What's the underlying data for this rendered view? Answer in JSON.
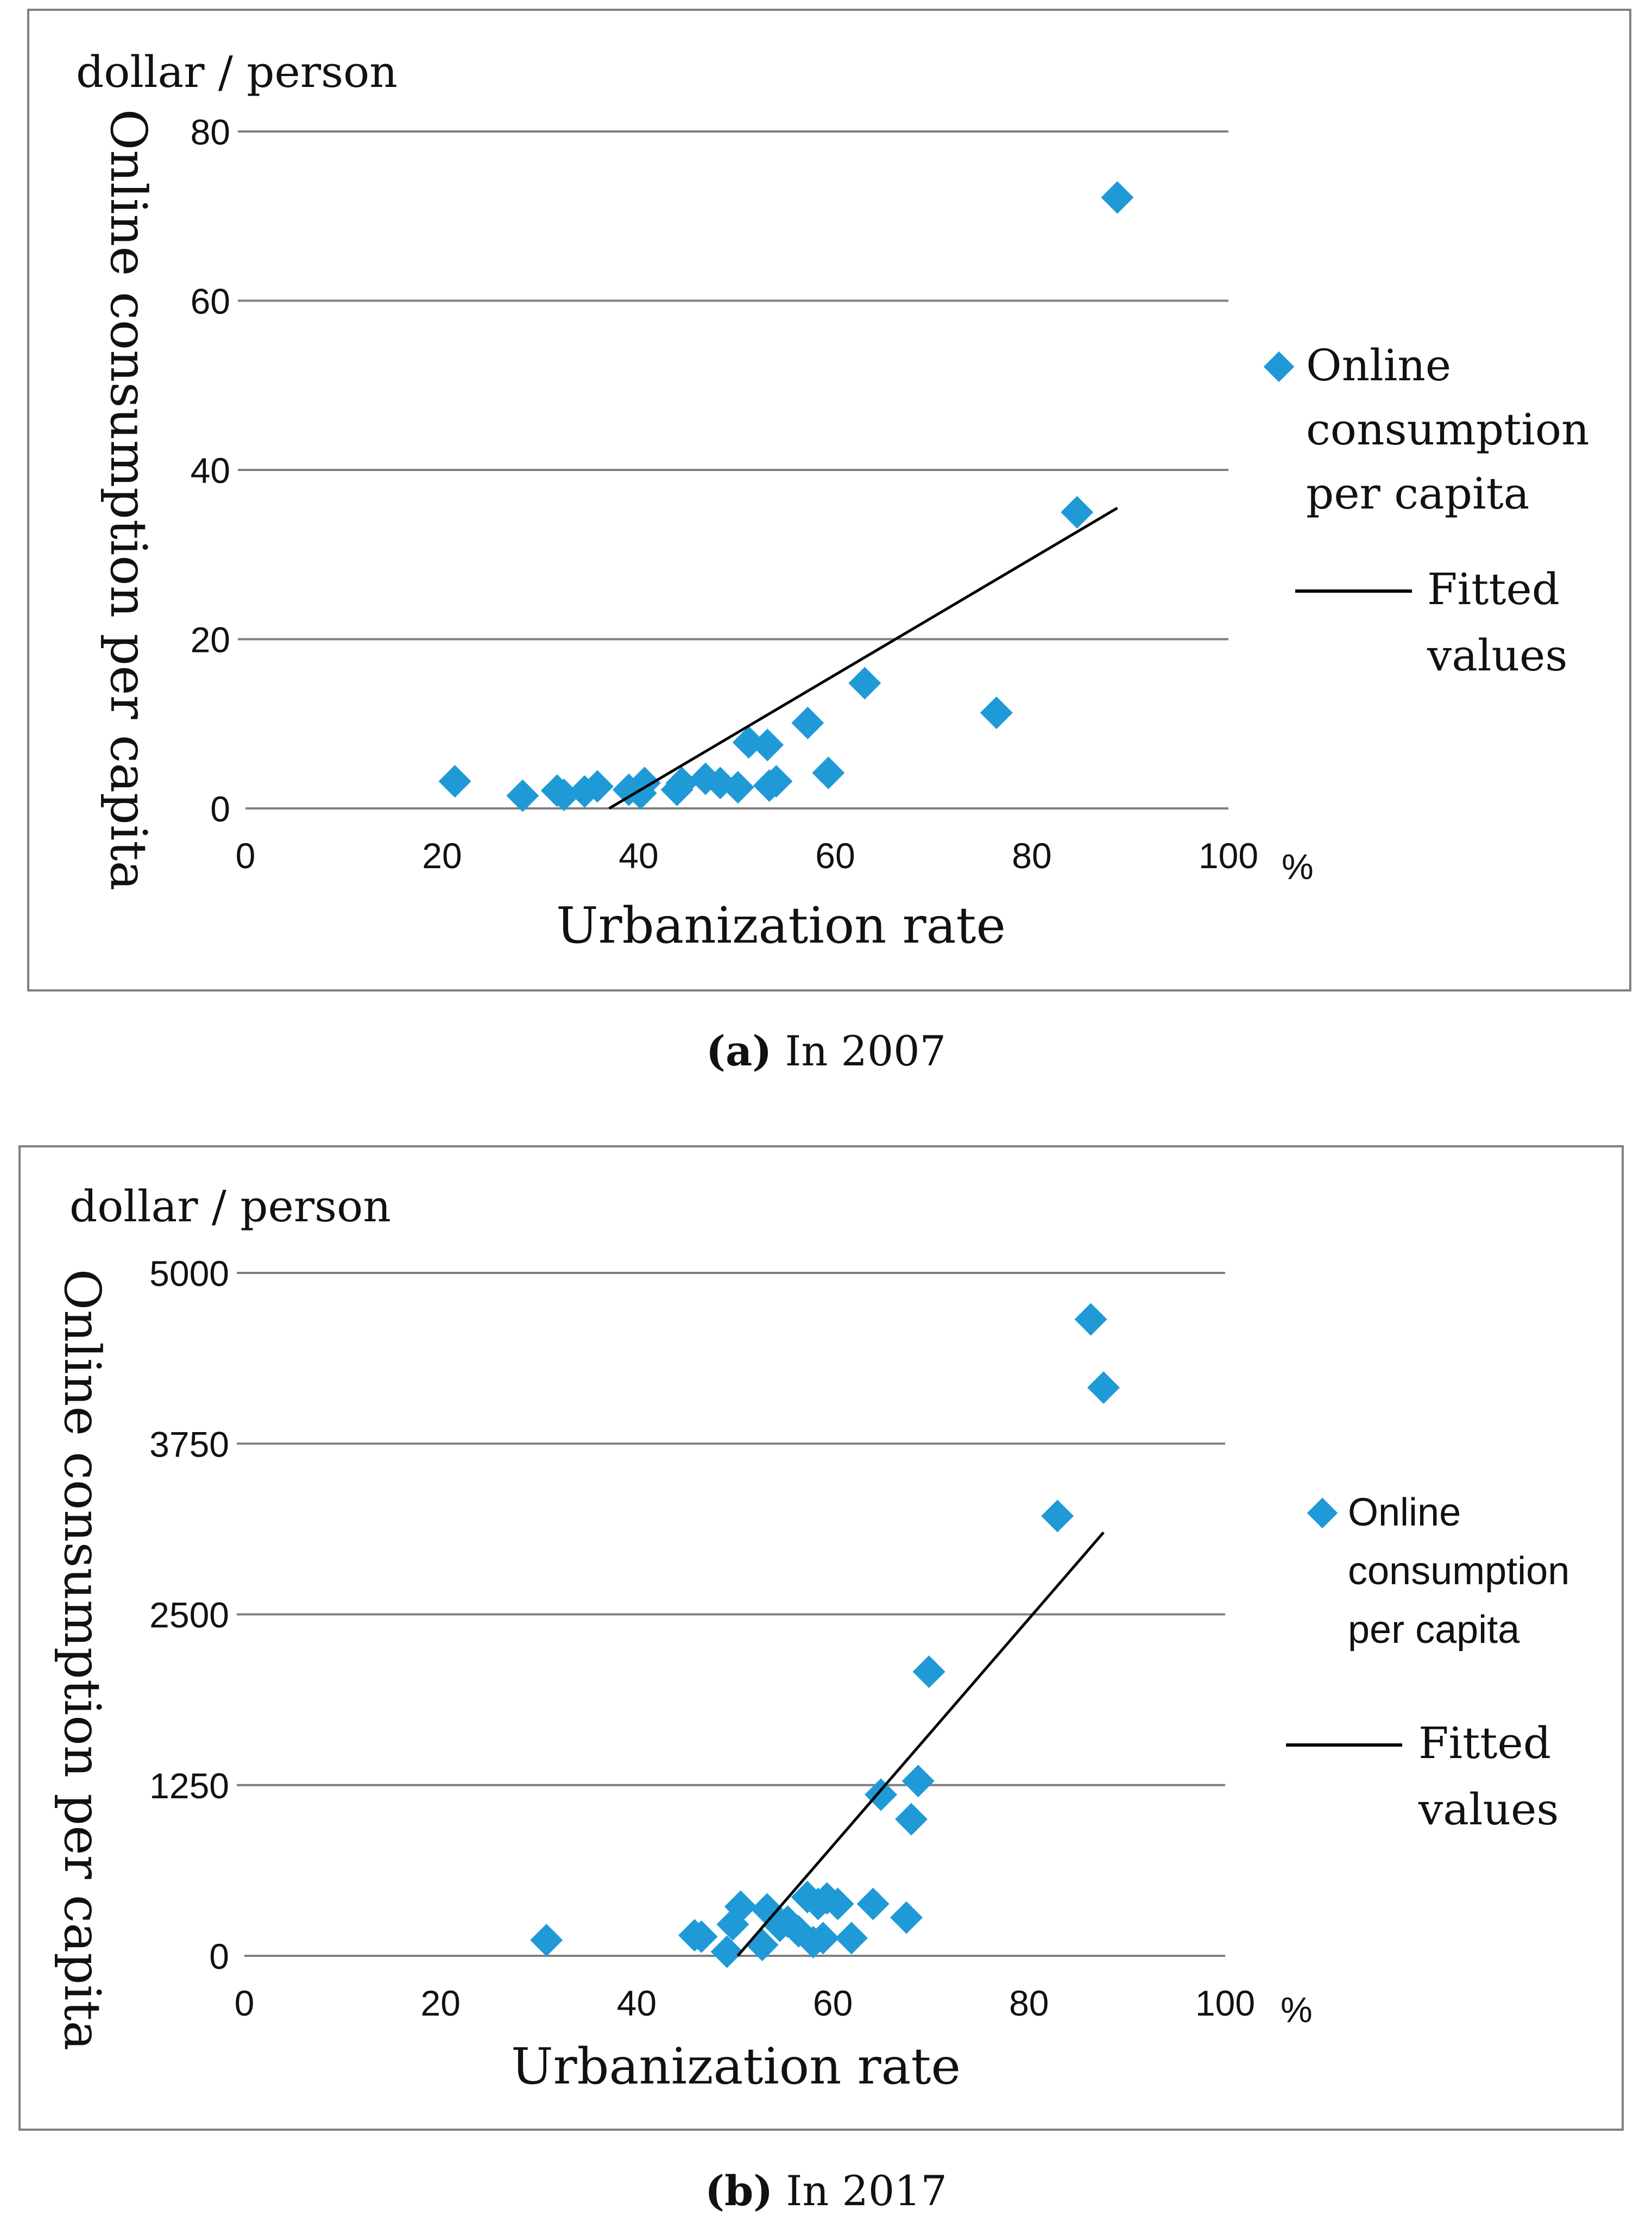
{
  "figures": [
    {
      "id": "a",
      "caption_label": "(a)",
      "caption_text": "In 2007"
    },
    {
      "id": "b",
      "caption_label": "(b)",
      "caption_text": "In 2017"
    }
  ],
  "colors": {
    "marker": "#1f9ad6",
    "fit_line": "#000000",
    "grid": "#7f7f7f",
    "frame": "#808080"
  },
  "chart_data": [
    {
      "type": "scatter",
      "title": "",
      "unit_label": "dollar / person",
      "xlabel": "Urbanization rate",
      "ylabel": "Online consumption per capita",
      "x_unit": "%",
      "xlim": [
        0,
        100
      ],
      "ylim": [
        0,
        80
      ],
      "xticks": [
        "0",
        "20",
        "40",
        "60",
        "80",
        "100"
      ],
      "yticks": [
        "0",
        "20",
        "40",
        "60",
        "80"
      ],
      "ytick_values": [
        0,
        20,
        40,
        60,
        80
      ],
      "grid": true,
      "legend_position": "right",
      "series": [
        {
          "name": "Online consumption per capita",
          "kind": "scatter",
          "x": [
            21.3,
            28.2,
            31.7,
            32.4,
            34.5,
            35.8,
            39.0,
            40.2,
            40.6,
            43.9,
            44.4,
            46.8,
            48.3,
            50.1,
            51.2,
            53.1,
            53.3,
            54.0,
            57.2,
            59.3,
            63.0,
            76.4,
            84.6,
            88.7
          ],
          "y": [
            3.2,
            1.5,
            2.1,
            1.6,
            2.0,
            2.6,
            2.2,
            1.8,
            3.0,
            2.2,
            3.0,
            3.5,
            3.0,
            2.5,
            7.8,
            7.5,
            2.7,
            3.2,
            10.1,
            4.2,
            14.8,
            11.3,
            35.0,
            72.2
          ]
        },
        {
          "name": "Fitted values",
          "kind": "line",
          "x": [
            37.0,
            88.7
          ],
          "y": [
            0.0,
            35.5
          ]
        }
      ]
    },
    {
      "type": "scatter",
      "title": "",
      "unit_label": "dollar / person",
      "xlabel": "Urbanization rate",
      "ylabel": "Online consumption per capita",
      "x_unit": "%",
      "xlim": [
        0,
        100
      ],
      "ylim": [
        0,
        5000
      ],
      "xticks": [
        "0",
        "20",
        "40",
        "60",
        "80",
        "100"
      ],
      "yticks": [
        "0",
        "1250",
        "2500",
        "3750",
        "5000"
      ],
      "ytick_values": [
        0,
        1250,
        2500,
        3750,
        5000
      ],
      "grid": true,
      "legend_position": "right",
      "series": [
        {
          "name": "Online consumption per capita",
          "kind": "scatter",
          "x": [
            30.8,
            45.9,
            46.6,
            49.2,
            49.8,
            50.6,
            52.8,
            53.3,
            54.6,
            55.4,
            56.5,
            57.4,
            58.0,
            58.5,
            59.0,
            59.4,
            60.5,
            61.9,
            64.1,
            64.9,
            67.5,
            68.0,
            68.7,
            69.8,
            82.9,
            86.3,
            87.6
          ],
          "y": [
            115,
            150,
            140,
            30,
            230,
            360,
            80,
            340,
            220,
            250,
            180,
            430,
            100,
            380,
            130,
            420,
            380,
            130,
            380,
            1180,
            280,
            1000,
            1280,
            2080,
            3220,
            4660,
            4160
          ]
        },
        {
          "name": "Fitted values",
          "kind": "line",
          "x": [
            50.3,
            87.6
          ],
          "y": [
            0,
            3100
          ]
        }
      ]
    }
  ]
}
